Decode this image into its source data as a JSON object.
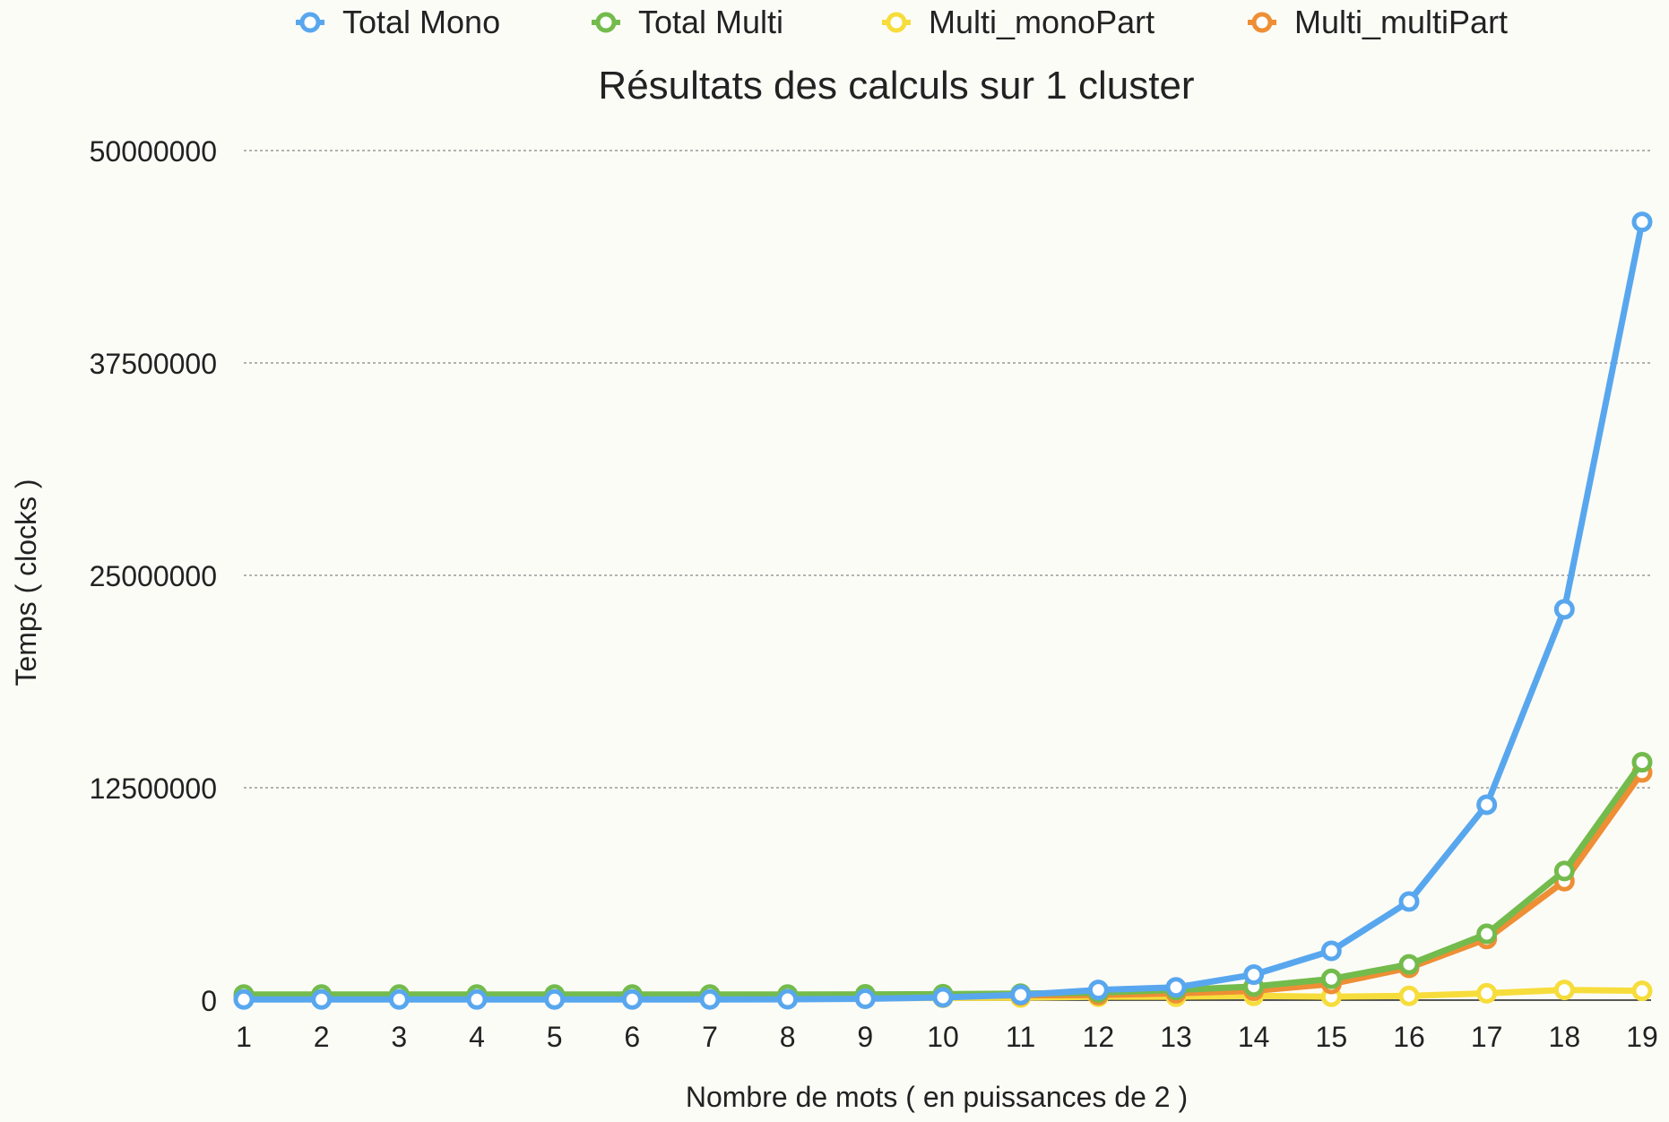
{
  "chart_data": {
    "type": "line",
    "title": "Résultats des calculs sur 1 cluster",
    "xlabel": "Nombre de mots ( en puissances de 2 )",
    "ylabel": "Temps ( clocks )",
    "ylim": [
      0,
      50000000
    ],
    "yticks": [
      "0",
      "12500000",
      "25000000",
      "37500000",
      "50000000"
    ],
    "ytick_values": [
      0,
      12500000,
      25000000,
      37500000,
      50000000
    ],
    "categories": [
      "1",
      "2",
      "3",
      "4",
      "5",
      "6",
      "7",
      "8",
      "9",
      "10",
      "11",
      "12",
      "13",
      "14",
      "15",
      "16",
      "17",
      "18",
      "19"
    ],
    "grid": true,
    "legend_position": "top",
    "series": [
      {
        "name": "Total Mono",
        "color": "#58a7ee",
        "values": [
          40000,
          40000,
          40000,
          40000,
          40000,
          40000,
          40000,
          50000,
          80000,
          160000,
          310000,
          600000,
          750000,
          1500000,
          2900000,
          5800000,
          11500000,
          23000000,
          45800000
        ]
      },
      {
        "name": "Total Multi",
        "color": "#73bb4c",
        "values": [
          330000,
          330000,
          330000,
          330000,
          330000,
          330000,
          330000,
          330000,
          340000,
          350000,
          380000,
          450000,
          600000,
          800000,
          1250000,
          2100000,
          3900000,
          7600000,
          14000000
        ]
      },
      {
        "name": "Multi_monoPart",
        "color": "#f7dd3c",
        "values": [
          100000,
          100000,
          100000,
          100000,
          100000,
          100000,
          100000,
          110000,
          120000,
          130000,
          150000,
          200000,
          200000,
          250000,
          200000,
          250000,
          400000,
          600000,
          550000
        ]
      },
      {
        "name": "Multi_multiPart",
        "color": "#ee8e35",
        "values": [
          230000,
          230000,
          230000,
          230000,
          230000,
          230000,
          230000,
          230000,
          240000,
          250000,
          280000,
          300000,
          400000,
          550000,
          950000,
          1900000,
          3600000,
          7000000,
          13400000
        ]
      }
    ]
  }
}
